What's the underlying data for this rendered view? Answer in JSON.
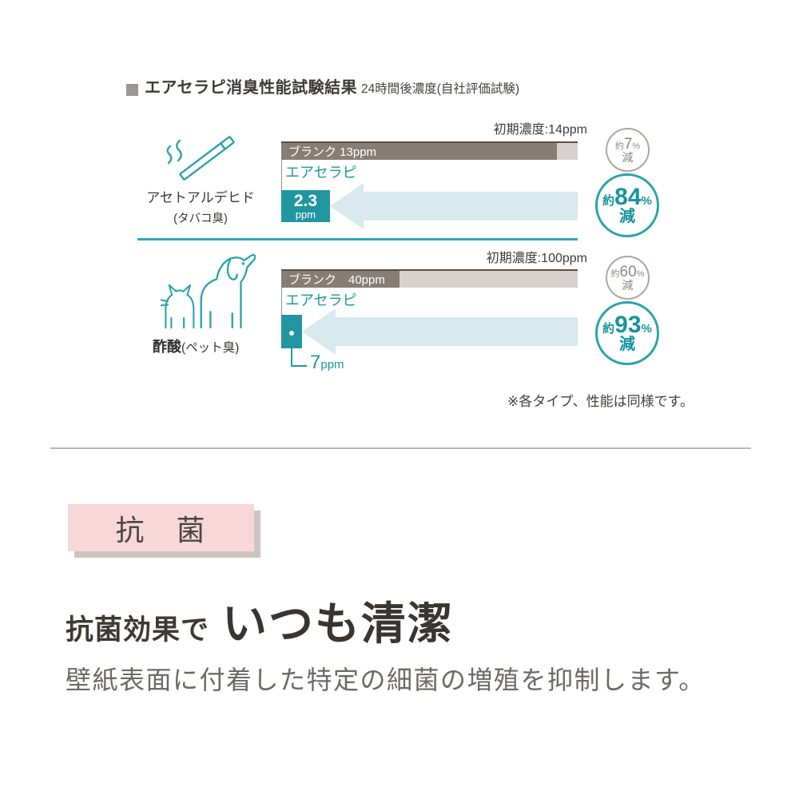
{
  "title": {
    "heading": "エアセラピ消臭性能試験結果",
    "subheading": "24時間後濃度(自社評価試験)"
  },
  "chart_data": [
    {
      "type": "bar",
      "category": "アセトアルデヒド",
      "category_note": "(タバコ臭)",
      "icon": "cigarette-icon",
      "initial_label": "初期濃度:14ppm",
      "initial_ppm": 14,
      "xlim": [
        0,
        14
      ],
      "product_label": "エアセラピ",
      "series": [
        {
          "name": "ブランク",
          "ppm": 13,
          "bar_label": "ブランク 13ppm",
          "fraction": 0.929,
          "reduction": {
            "approx": "約",
            "value": "7",
            "unit": "%",
            "word": "減"
          }
        },
        {
          "name": "エアセラピ",
          "ppm": 2.3,
          "value_display": "2.3",
          "unit": "ppm",
          "fraction": 0.164,
          "reduction": {
            "approx": "約",
            "value": "84",
            "unit": "%",
            "word": "減"
          }
        }
      ]
    },
    {
      "type": "bar",
      "category": "酢酸",
      "category_note": "(ペット臭)",
      "icon": "cat-icon dog-icon",
      "initial_label": "初期濃度:100ppm",
      "initial_ppm": 100,
      "xlim": [
        0,
        100
      ],
      "product_label": "エアセラピ",
      "series": [
        {
          "name": "ブランク",
          "ppm": 40,
          "bar_label": "ブランク　40ppm",
          "fraction": 0.4,
          "reduction": {
            "approx": "約",
            "value": "60",
            "unit": "%",
            "word": "減"
          }
        },
        {
          "name": "エアセラピ",
          "ppm": 7,
          "value_display": "7",
          "unit": "ppm",
          "fraction": 0.07,
          "reduction": {
            "approx": "約",
            "value": "93",
            "unit": "%",
            "word": "減"
          }
        }
      ]
    }
  ],
  "note": "※各タイプ、性能は同様です。",
  "antibacterial": {
    "badge": "抗　菌",
    "headline_lead": "抗菌効果で",
    "headline_main": "いつも清潔",
    "body": "壁紙表面に付着した特定の細菌の増殖を抑制します。"
  },
  "colors": {
    "teal": "#2097a0",
    "teal_light": "#d8eaed",
    "teal_divider": "#2ba7b3",
    "bar_dark": "#877d75",
    "bar_edge": "#575049",
    "bar_light": "#d7d2cd",
    "circle_gray_border": "#ada69f",
    "pink_badge": "#f8d7d8"
  }
}
